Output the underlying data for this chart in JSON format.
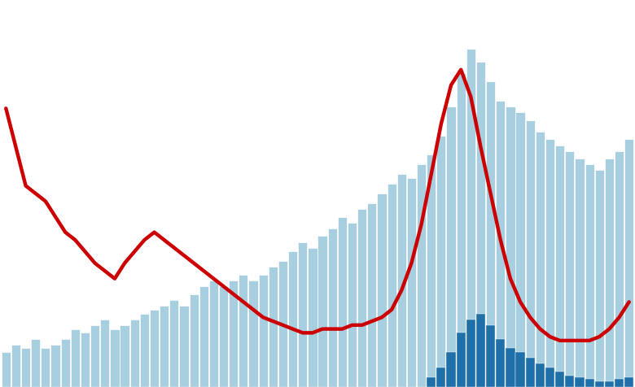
{
  "light_blue_bars": [
    18,
    22,
    20,
    25,
    20,
    22,
    25,
    30,
    28,
    32,
    35,
    30,
    32,
    35,
    38,
    40,
    42,
    45,
    42,
    48,
    52,
    55,
    52,
    55,
    58,
    55,
    58,
    62,
    65,
    70,
    75,
    72,
    78,
    82,
    88,
    85,
    92,
    95,
    100,
    105,
    110,
    108,
    115,
    120,
    130,
    145,
    162,
    175,
    168,
    158,
    148,
    145,
    142,
    138,
    132,
    128,
    125,
    122,
    118,
    115,
    112,
    118,
    122,
    128
  ],
  "dark_blue_bars": [
    0,
    0,
    0,
    0,
    0,
    0,
    0,
    0,
    0,
    0,
    0,
    0,
    0,
    0,
    0,
    0,
    0,
    0,
    0,
    0,
    0,
    0,
    0,
    0,
    0,
    0,
    0,
    0,
    0,
    0,
    0,
    0,
    0,
    0,
    0,
    0,
    0,
    0,
    0,
    0,
    0,
    0,
    0,
    5,
    10,
    18,
    28,
    35,
    38,
    32,
    25,
    20,
    18,
    15,
    12,
    10,
    8,
    6,
    5,
    4,
    3,
    3,
    4,
    5
  ],
  "red_line": [
    72,
    62,
    52,
    50,
    48,
    44,
    40,
    38,
    35,
    32,
    30,
    28,
    32,
    35,
    38,
    40,
    38,
    36,
    34,
    32,
    30,
    28,
    26,
    24,
    22,
    20,
    18,
    17,
    16,
    15,
    14,
    14,
    15,
    15,
    15,
    16,
    16,
    17,
    18,
    20,
    25,
    32,
    42,
    55,
    68,
    78,
    82,
    75,
    62,
    50,
    38,
    28,
    22,
    18,
    15,
    13,
    12,
    12,
    12,
    12,
    13,
    15,
    18,
    22
  ],
  "light_blue_color": "#a8cfe0",
  "dark_blue_color": "#1f6fa8",
  "red_line_color": "#cc0000",
  "background_color": "#ffffff",
  "bar_width": 0.92,
  "bar_ylim_max": 200,
  "red_ylim_max": 100,
  "n_bars": 64
}
